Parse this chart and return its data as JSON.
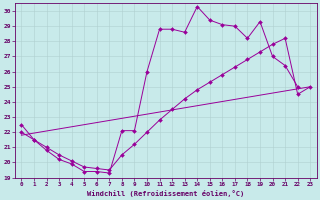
{
  "background_color": "#c8eaea",
  "line_color": "#990099",
  "xlim": [
    -0.5,
    23.5
  ],
  "ylim": [
    19,
    30.5
  ],
  "yticks": [
    19,
    20,
    21,
    22,
    23,
    24,
    25,
    26,
    27,
    28,
    29,
    30
  ],
  "xticks": [
    0,
    1,
    2,
    3,
    4,
    5,
    6,
    7,
    8,
    9,
    10,
    11,
    12,
    13,
    14,
    15,
    16,
    17,
    18,
    19,
    20,
    21,
    22,
    23
  ],
  "xlabel": "Windchill (Refroidissement éolien,°C)",
  "series1_x": [
    0,
    1,
    2,
    3,
    4,
    5,
    6,
    7,
    8,
    9,
    10,
    11,
    12,
    13,
    14,
    15,
    16,
    17,
    18,
    19,
    20,
    21,
    22
  ],
  "series1_y": [
    22.5,
    21.5,
    20.8,
    20.2,
    19.9,
    19.4,
    19.4,
    19.3,
    22.1,
    22.1,
    26.0,
    28.8,
    28.8,
    28.6,
    30.3,
    29.4,
    29.1,
    29.0,
    28.2,
    29.3,
    27.0,
    26.4,
    25.0
  ],
  "series2_x": [
    0,
    1,
    2,
    3,
    4,
    5,
    6,
    7,
    8,
    9,
    10,
    11,
    12,
    13,
    14,
    15,
    16,
    17,
    18,
    19,
    20,
    21,
    22,
    23
  ],
  "series2_y": [
    22.0,
    21.5,
    21.0,
    20.5,
    20.1,
    19.7,
    19.6,
    19.5,
    20.5,
    21.2,
    22.0,
    22.8,
    23.5,
    24.2,
    24.8,
    25.3,
    25.8,
    26.3,
    26.8,
    27.3,
    27.8,
    28.2,
    24.5,
    25.0
  ],
  "series3_x": [
    0,
    23
  ],
  "series3_y": [
    21.8,
    25.0
  ]
}
